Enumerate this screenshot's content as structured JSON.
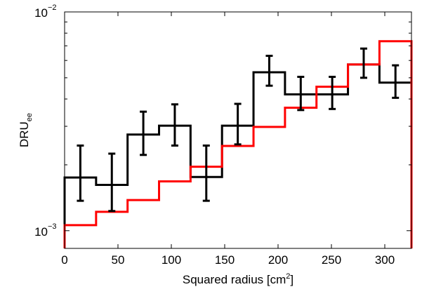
{
  "chart_data": {
    "type": "histogram",
    "xlabel": "Squared radius [cm",
    "xlabel_sup": "2",
    "xlabel_end": "]",
    "ylabel": "DRU",
    "ylabel_sub": "ee",
    "xlim": [
      0,
      325
    ],
    "ylim": [
      0.00083,
      0.01
    ],
    "yscale": "log",
    "x_ticks": [
      0,
      50,
      100,
      150,
      200,
      250,
      300
    ],
    "x_tick_labels": [
      "0",
      "50",
      "100",
      "150",
      "200",
      "250",
      "300"
    ],
    "y_ticks": [
      {
        "value": 0.01,
        "base": "10",
        "exp": "−2"
      },
      {
        "value": 0.001,
        "base": "10",
        "exp": "−3"
      }
    ],
    "bin_edges": [
      0,
      29.5,
      59,
      88.5,
      118,
      147.5,
      177,
      206.5,
      236,
      265.5,
      295,
      325
    ],
    "series": [
      {
        "color": "#000000",
        "values": [
          0.00175,
          0.00162,
          0.00275,
          0.00302,
          0.00176,
          0.00302,
          0.0053,
          0.0042,
          0.0042,
          0.00575,
          0.00475
        ],
        "err_low": [
          0.00137,
          0.00123,
          0.00222,
          0.00245,
          0.00137,
          0.00248,
          0.0046,
          0.00356,
          0.0036,
          0.005,
          0.00405
        ],
        "err_high": [
          0.00245,
          0.00225,
          0.0035,
          0.00378,
          0.00245,
          0.0038,
          0.0063,
          0.00505,
          0.00505,
          0.0068,
          0.0057
        ]
      },
      {
        "color": "#ff0000",
        "values": [
          0.00106,
          0.00122,
          0.00138,
          0.00168,
          0.00196,
          0.00244,
          0.00298,
          0.00365,
          0.00455,
          0.00575,
          0.00735
        ]
      }
    ]
  }
}
